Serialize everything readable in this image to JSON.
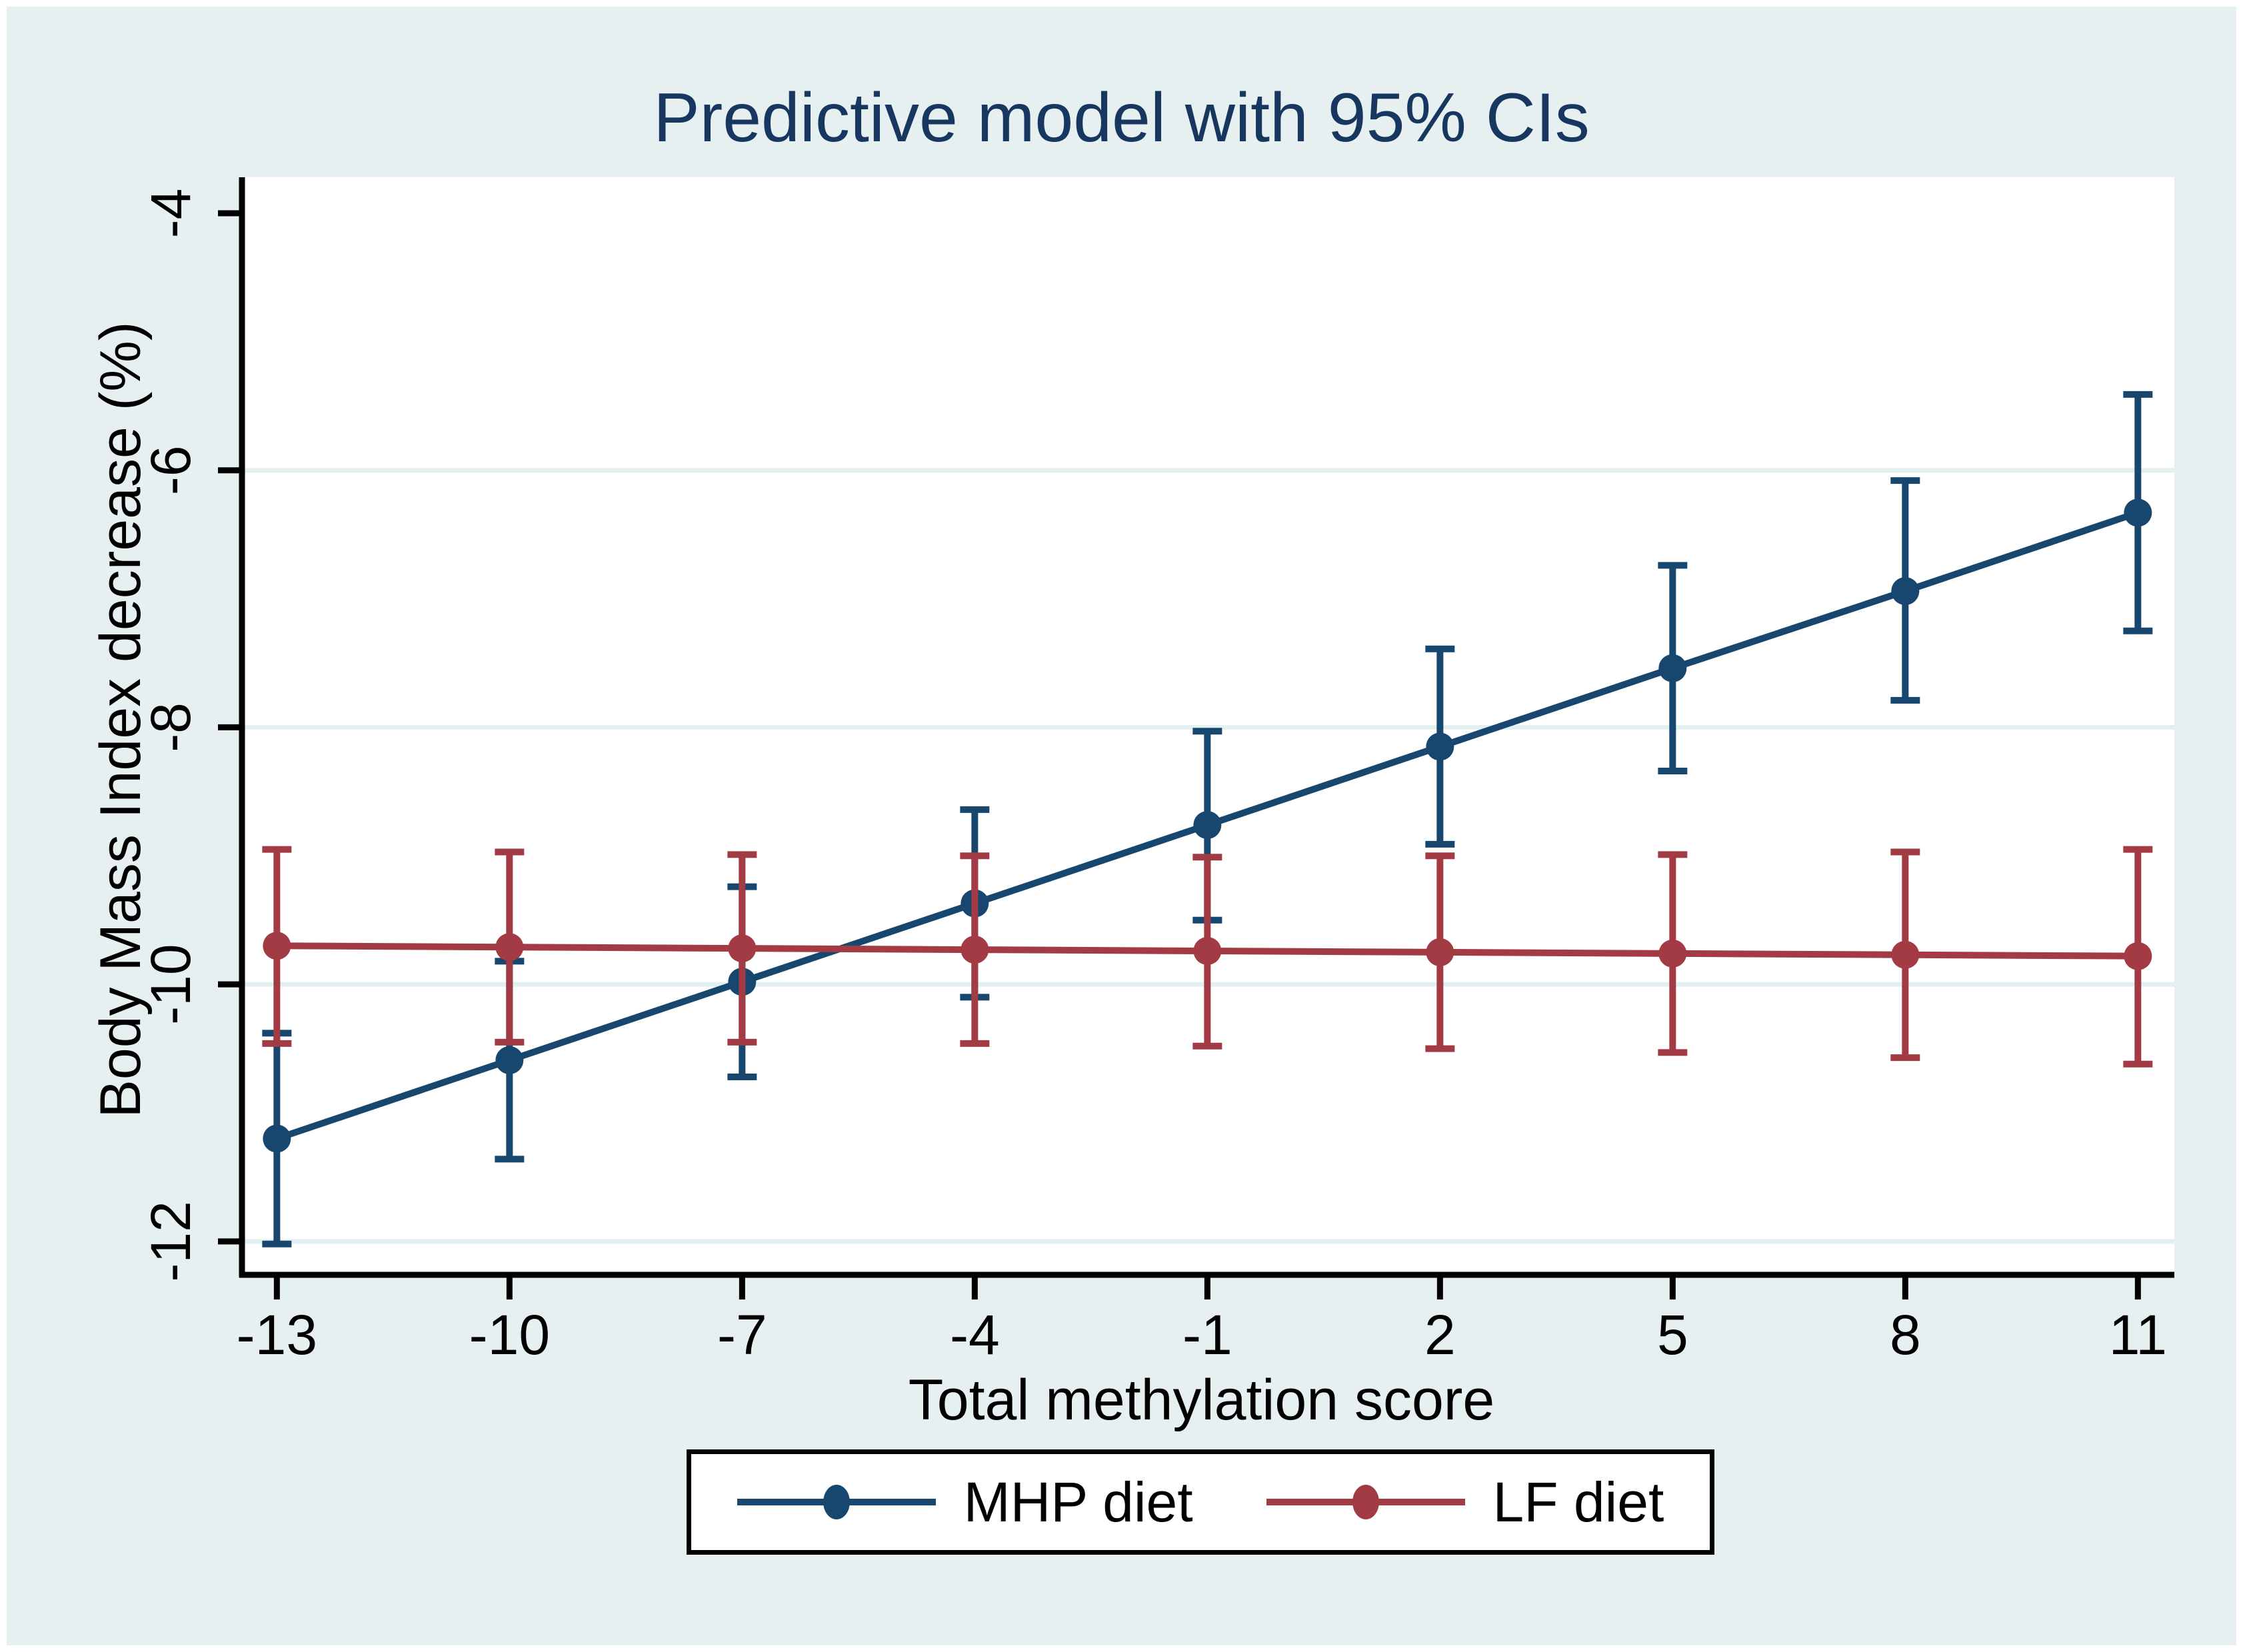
{
  "title": {
    "text": "Predictive model with 95% CIs"
  },
  "chart_data": {
    "type": "line",
    "title": "Predictive model with 95% CIs",
    "xlabel": "Total methylation score",
    "ylabel": "Body Mass Index decrease (%)",
    "x": [
      -13,
      -10,
      -7,
      -4,
      -1,
      2,
      5,
      8,
      11
    ],
    "xtick_labels": [
      "-13",
      "-10",
      "-7",
      "-4",
      "-1",
      "2",
      "5",
      "8",
      "11"
    ],
    "yticks": [
      -4,
      -6,
      -8,
      -10,
      -12
    ],
    "ytick_labels": [
      "-4",
      "-6",
      "-8",
      "-10",
      "-12"
    ],
    "grid_yticks": [
      -6,
      -8,
      -10,
      -12
    ],
    "xlim": [
      -13.45,
      11.47
    ],
    "ylim": [
      -12.26,
      -3.72
    ],
    "grid": true,
    "error_bars": "95% confidence intervals",
    "legend_position": "bottom-center",
    "series": [
      {
        "name": "MHP diet",
        "color": "#17476E",
        "values": [
          -11.2,
          -10.59,
          -9.98,
          -9.37,
          -8.76,
          -8.15,
          -7.54,
          -6.94,
          -6.33
        ],
        "ci_low": [
          -12.02,
          -11.36,
          -10.72,
          -10.1,
          -9.5,
          -8.91,
          -8.34,
          -7.79,
          -7.25
        ],
        "ci_high": [
          -10.38,
          -9.82,
          -9.24,
          -8.64,
          -8.03,
          -7.39,
          -6.74,
          -6.08,
          -5.41
        ]
      },
      {
        "name": "LF diet",
        "color": "#A33B44",
        "values": [
          -9.7,
          -9.71,
          -9.72,
          -9.73,
          -9.74,
          -9.75,
          -9.76,
          -9.77,
          -9.78
        ],
        "ci_low": [
          -10.46,
          -10.45,
          -10.45,
          -10.46,
          -10.48,
          -10.5,
          -10.53,
          -10.57,
          -10.62
        ],
        "ci_high": [
          -8.95,
          -8.97,
          -8.99,
          -9.0,
          -9.01,
          -9.0,
          -8.99,
          -8.97,
          -8.95
        ]
      }
    ]
  },
  "axis_titles": {
    "x": "Total methylation score",
    "y": "Body Mass Index decrease (%)"
  },
  "legend": {
    "items": [
      {
        "label": "MHP diet",
        "color": "#17476E"
      },
      {
        "label": "LF diet",
        "color": "#A33B44"
      }
    ]
  },
  "colors": {
    "background": "#E7F0F1",
    "plot_background": "#FFFFFF",
    "gridline": "#E2F0F1",
    "axis": "#000000",
    "title": "#173760"
  }
}
